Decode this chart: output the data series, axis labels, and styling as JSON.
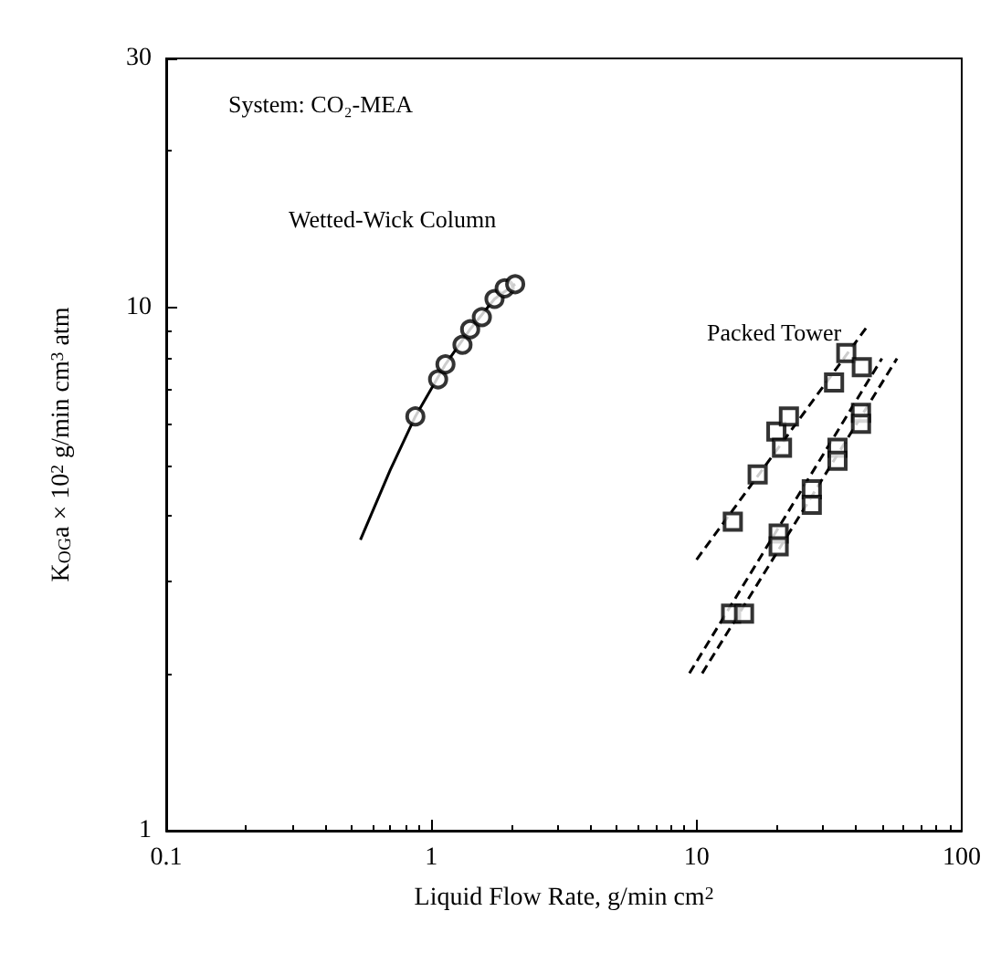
{
  "chart_data": {
    "type": "scatter",
    "xlabel": "Liquid Flow Rate, g/min cm$^{2}$",
    "ylabel": "K$_{OG}$a × 10$^{2}$ g/min cm$^{3}$ atm",
    "log": "xy",
    "grid": false,
    "xlim": [
      0.1,
      100
    ],
    "xticks": [
      0.1,
      1,
      10,
      100
    ],
    "ylim": [
      1,
      30
    ],
    "yticks": [
      1,
      10,
      30
    ],
    "series": [
      {
        "marker": "circle",
        "color": "#000000",
        "x": [
          0.87,
          1.06,
          1.13,
          1.31,
          1.4,
          1.55,
          1.73,
          1.89,
          2.07
        ],
        "values": [
          6.2,
          7.3,
          7.8,
          8.5,
          9.1,
          9.6,
          10.4,
          10.9,
          11.1
        ]
      },
      {
        "type": "line",
        "marker": "none",
        "line_style": "solid",
        "color": "#000000",
        "x": [
          0.54,
          0.7,
          0.87,
          1.13,
          1.4,
          1.73,
          2.07
        ],
        "values": [
          3.6,
          4.9,
          6.2,
          7.8,
          9.1,
          10.4,
          11.1
        ]
      },
      {
        "type": "scatter",
        "marker": "square",
        "color": "#000000",
        "x": [
          13.7,
          17,
          20,
          21,
          22.3,
          33,
          36.7,
          42
        ],
        "values": [
          3.9,
          4.8,
          5.8,
          5.4,
          6.2,
          7.2,
          8.2,
          7.7
        ]
      },
      {
        "type": "line",
        "marker": "none",
        "line_style": "dashed",
        "color": "#000000",
        "x": [
          10,
          44.6
        ],
        "values": [
          3.3,
          9.3
        ]
      },
      {
        "type": "scatter",
        "marker": "square",
        "color": "#000000",
        "x": [
          13.5,
          15.1,
          20.4,
          20.4,
          27.2,
          27.2,
          34,
          34,
          41.7,
          41.7
        ],
        "values": [
          2.6,
          2.6,
          3.7,
          3.5,
          4.5,
          4.2,
          5.4,
          5.1,
          6.3,
          6
        ]
      },
      {
        "type": "line",
        "marker": "none",
        "line_style": "dashed",
        "color": "#000000",
        "x": [
          9.4,
          50
        ],
        "values": [
          2,
          8
        ]
      },
      {
        "type": "line",
        "marker": "none",
        "line_style": "dashed",
        "color": "#000000",
        "x": [
          10.5,
          57
        ],
        "values": [
          2,
          8
        ]
      }
    ],
    "annotations": [
      "System: CO₂-MEA",
      "Wetted-Wick Column",
      "Packed Tower"
    ]
  }
}
